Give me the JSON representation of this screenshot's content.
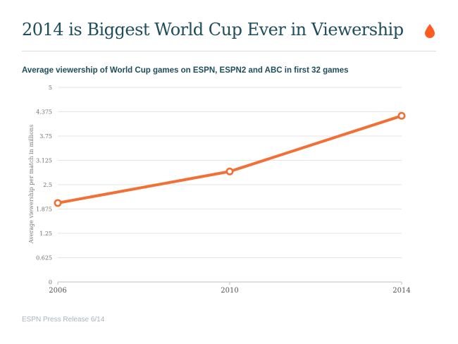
{
  "header": {
    "title": "2014 is Biggest World Cup Ever in Viewership",
    "logo_icon": "drop-icon",
    "accent_color": "#ff5a1f"
  },
  "footer": {
    "source": "ESPN Press Release 6/14"
  },
  "chart_data": {
    "type": "line",
    "title": "Average viewership of World Cup games on ESPN, ESPN2 and ABC in first 32 games",
    "xlabel": "",
    "ylabel": "Average viewership per match in millions",
    "categories": [
      "2006",
      "2010",
      "2014"
    ],
    "series": [
      {
        "values": [
          2.03,
          2.84,
          4.27
        ],
        "color": "#f26f36"
      }
    ],
    "yticks": [
      "0",
      "0.625",
      "1.25",
      "1.875",
      "2.5",
      "3.125",
      "3.75",
      "4.375",
      "5"
    ],
    "ylim": [
      0,
      5
    ],
    "grid": true
  }
}
